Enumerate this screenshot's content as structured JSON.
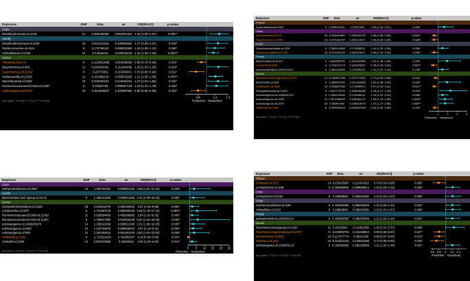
{
  "colors": {
    "background": "#000000",
    "header_bg": "#c8c8c8",
    "header_text": "#000000",
    "group_bg": "#2c2c3c",
    "group_order": "#3c3c50",
    "group_class": "#4a1a5c",
    "group_family": "#1a4a5a",
    "group_genus": "#2c4a14",
    "group_phylum": "#4a2a10",
    "text": "#e8e8e8",
    "protective": "#f08a24",
    "hazardous": "#3fd0e0",
    "axis": "#ffffff",
    "refline": "#3fd0e0"
  },
  "chart_data": [
    {
      "type": "table",
      "panel": "top-left",
      "headers": [
        "Exposure",
        "SNP",
        "beta",
        "se",
        "OR(95%CI)",
        "p-value"
      ],
      "xlim": [
        0.5,
        1.5
      ],
      "ticks": [
        "0.8",
        "1.2",
        "1.5"
      ],
      "axis_labels": [
        "Protective",
        "Hazardous"
      ],
      "footnote": "Key values: * P<0.05; ** P<0.01; *** P<0.001",
      "rows": [
        {
          "group": "Order"
        },
        {
          "name": "Desulfovibrionales.id.3156",
          "snp": "12",
          "beta": "0.265530069",
          "se": "0.094091331",
          "or": "1.30 (1.08~1.57)",
          "p": "0.005**",
          "est": 1.3,
          "lo": 1.08,
          "hi": 1.57
        },
        {
          "group": "Family"
        },
        {
          "name": "Desulfovibrionaceae.id.3169",
          "snp": "10",
          "beta": "0.242212315",
          "se": "0.106803854",
          "or": "1.27 (1.03~1.57)",
          "p": "0.023*",
          "est": 1.27,
          "lo": 1.03,
          "hi": 1.57
        },
        {
          "name": "Peptococcaceae.id.2024",
          "snp": "8",
          "beta": "0.175755164",
          "se": "0.089023953",
          "or": "1.19 (1.00~1.42)",
          "p": "0.048*",
          "est": 1.19,
          "lo": 1.0,
          "hi": 1.42
        },
        {
          "name": "Victivallaceae.id.2255",
          "snp": "12",
          "beta": "0.14618415",
          "se": "0.049025218",
          "or": "1.16 (1.05~1.28)",
          "p": "0.002**",
          "est": 1.16,
          "lo": 1.05,
          "hi": 1.28
        },
        {
          "group": "Genus"
        },
        {
          "name": "Allisonella.id.2174",
          "snp": "8",
          "beta": "-0.123381859",
          "se": "0.054695665",
          "or": "0.88 (0.79~0.98)",
          "p": "0.024*",
          "est": 0.88,
          "lo": 0.79,
          "hi": 0.98
        },
        {
          "name": "Butyricimonas.id.945",
          "snp": "13",
          "beta": "0.250945452",
          "se": "0.111444485",
          "or": "1.28 (1.03~1.60)",
          "p": "0.024*",
          "est": 1.28,
          "lo": 1.03,
          "hi": 1.6
        },
        {
          "name": "Coprococcus2.id.11302",
          "snp": "8",
          "beta": "-0.28770961",
          "se": "0.113384441",
          "or": "0.75 (0.60~0.94)",
          "p": "0.011*",
          "est": 0.75,
          "lo": 0.6,
          "hi": 0.94
        },
        {
          "name": "Holdemanella.id.11393",
          "snp": "11",
          "beta": "0.181589154",
          "se": "0.066531653",
          "or": "1.21 (1.06~1.38)",
          "p": "0.004**",
          "est": 1.21,
          "lo": 1.06,
          "hi": 1.38
        },
        {
          "name": "Marvinbryantia.id.2005",
          "snp": "10",
          "beta": "0.240032101",
          "se": "0.104934231",
          "or": "1.27 (1.04~1.56)",
          "p": "0.022*",
          "est": 1.27,
          "lo": 1.04,
          "hi": 1.56
        },
        {
          "name": "RuminococcaceaeUCG010.id.11367",
          "snp": "8",
          "beta": "0.20382759",
          "se": "0.099087126",
          "or": "1.23 (1.01~1.49)",
          "p": "0.040*",
          "est": 1.23,
          "lo": 1.01,
          "hi": 1.49
        },
        {
          "name": "unknowngenus.id.2071",
          "snp": "15",
          "beta": "-0.223265027",
          "se": "0.103887964",
          "or": "0.80 (0.65~0.98)",
          "p": "0.032*",
          "est": 0.8,
          "lo": 0.65,
          "hi": 0.98
        }
      ]
    },
    {
      "type": "table",
      "panel": "top-right",
      "headers": [
        "Exposure",
        "SNP",
        "beta",
        "se",
        "OR(95%CI)",
        "p-value"
      ],
      "xlim": [
        0,
        4
      ],
      "ticks": [
        "1",
        "2",
        "3",
        "4"
      ],
      "axis_labels": [
        "Protective",
        "Hazardous"
      ],
      "footnote": "Key values: * P<0.05; ** P<0.01; *** P<0.001",
      "rows": [
        {
          "group": "Phylum"
        },
        {
          "name": "Cyanobacteria.id.1500",
          "snp": "9",
          "beta": "0.465021561",
          "se": "0.23207981",
          "or": "1.63 (1.04~2.57)",
          "p": "0.036*",
          "est": 1.63,
          "lo": 1.04,
          "hi": 2.57
        },
        {
          "group": "Class"
        },
        {
          "name": "Actinobacteria.id.419",
          "snp": "15",
          "beta": "-0.550349867",
          "se": "0.209930729",
          "or": "0.58 (0.38~0.86)",
          "p": "0.008**",
          "est": 0.58,
          "lo": 0.38,
          "hi": 0.86
        },
        {
          "name": "Negativicutes.id.2164",
          "snp": "13",
          "beta": "-0.574106747",
          "se": "0.262123471",
          "or": "0.56 (0.34~0.94)",
          "p": "0.028*",
          "est": 0.56,
          "lo": 0.34,
          "hi": 0.94
        },
        {
          "group": "Order"
        },
        {
          "name": "Gastranaerophilales.id.1591",
          "snp": "9",
          "beta": "0.365143388",
          "se": "0.176496211",
          "or": "1.44 (1.02~2.04)",
          "p": "0.038*",
          "est": 1.44,
          "lo": 1.02,
          "hi": 2.04
        },
        {
          "name": "Selenomonadales.id.2165",
          "snp": "13",
          "beta": "-0.574106747",
          "se": "0.262123471",
          "or": "0.56 (0.34~0.94)",
          "p": "0.028*",
          "est": 0.56,
          "lo": 0.34,
          "hi": 0.94
        },
        {
          "group": "Family"
        },
        {
          "name": "Bacteroidaceae.id.917",
          "snp": "9",
          "beta": "0.650639752",
          "se": "0.251432896",
          "or": "1.92 (1.08~3.39)",
          "p": "0.026*",
          "est": 1.92,
          "lo": 1.08,
          "hi": 3.39
        },
        {
          "name": "FamilyXIII.id.1957",
          "snp": "8",
          "beta": "-0.783713174",
          "se": "0.303926287",
          "or": "0.46 (0.25~0.82)",
          "p": "0.008**",
          "est": 0.46,
          "lo": 0.25,
          "hi": 0.82
        },
        {
          "name": "unknownfamily.id.1000001214",
          "snp": "8",
          "beta": "0.365143098",
          "se": "0.176496211",
          "or": "1.44 (1.02~2.04)",
          "p": "0.038*",
          "est": 1.44,
          "lo": 1.02,
          "hi": 2.04
        },
        {
          "group": "Genus"
        },
        {
          "name": "Ruminococcaceaegroup.id.14378",
          "snp": "12",
          "beta": "-0.332547489",
          "se": "0.157177832",
          "or": "0.72 (0.53~0.98)",
          "p": "0.034*",
          "est": 0.72,
          "lo": 0.53,
          "hi": 0.98
        },
        {
          "name": "Bacteroides.id.918",
          "snp": "9",
          "beta": "0.650639752",
          "se": "0.291432896",
          "or": "1.92 (1.08~3.39)",
          "p": "0.026*",
          "est": 1.92,
          "lo": 1.08,
          "hi": 3.39
        },
        {
          "name": "Catillibacter.id.2063",
          "snp": "13",
          "beta": "-0.558997956",
          "se": "0.175488412",
          "or": "0.57 (0.40~0.81)",
          "p": "0.001**",
          "est": 0.57,
          "lo": 0.4,
          "hi": 0.81
        },
        {
          "name": "Senegalimassilia.id.11160",
          "snp": "5",
          "beta": "0.824170703",
          "se": "0.338539438",
          "or": "2.28 (1.17~4.43)",
          "p": "0.015*",
          "est": 2.28,
          "lo": 1.17,
          "hi": 4.43
        },
        {
          "name": "unknowngenus.id.1000001215",
          "snp": "8",
          "beta": "0.365143098",
          "se": "0.176496211",
          "or": "1.44 (1.02~2.04)",
          "p": "0.038*",
          "est": 1.44,
          "lo": 1.02,
          "hi": 2.04
        },
        {
          "name": "unknowngenus.id.2001",
          "snp": "10",
          "beta": "0.527089085",
          "se": "0.166501179",
          "or": "1.69 (1.16~2.50)",
          "p": "0.008**",
          "est": 1.69,
          "lo": 1.16,
          "hi": 2.5
        },
        {
          "name": "unknowngenus.id.2071",
          "snp": "15",
          "beta": "0.55047296",
          "se": "0.188313079",
          "or": "1.73 (1.17~2.56)",
          "p": "0.006**",
          "est": 1.73,
          "lo": 1.17,
          "hi": 2.56
        },
        {
          "name": "Veillonella.id.2198",
          "snp": "8",
          "beta": "-0.454246013",
          "se": "0.208901436",
          "or": "0.63 (0.42~0.96)",
          "p": "0.031*",
          "est": 0.63,
          "lo": 0.42,
          "hi": 0.96
        }
      ]
    },
    {
      "type": "table",
      "panel": "bottom-left",
      "headers": [
        "Exposure",
        "SNP",
        "beta",
        "se",
        "OR(95%CI)",
        "p-value"
      ],
      "xlim": [
        0,
        25
      ],
      "ticks": [
        "0",
        "5",
        "10",
        "15",
        "20",
        "25"
      ],
      "axis_labels": [
        "Protective",
        "Hazardous"
      ],
      "footnote": "Key values: * P<0.05; ** P<0.01; *** P<0.001",
      "rows": [
        {
          "group": "Class"
        },
        {
          "name": "Deltaproteobacteria.id.3087",
          "snp": "13",
          "beta": "1.302754781",
          "se": "0.660801418",
          "or": "3.68 (1.01~13.44)",
          "p": "0.049*",
          "est": 3.68,
          "lo": 1.01,
          "hi": 13.44
        },
        {
          "group": "Family"
        },
        {
          "name": "Bacteroidales.S24.7group.id.11173",
          "snp": "8",
          "beta": "1.185321638",
          "se": "0.568512345",
          "or": "3.31 (1.09~10.03)",
          "p": "0.035*",
          "est": 3.31,
          "lo": 1.09,
          "hi": 10.03
        },
        {
          "group": "Genus"
        },
        {
          "name": "Erysipelotrichostridium.id.11381",
          "snp": "15",
          "beta": "0.943311078",
          "se": "0.480303642",
          "or": "2.57 (1.00~6.58)",
          "p": "0.050*",
          "est": 2.57,
          "lo": 1.0,
          "hi": 6.58
        },
        {
          "name": "Lactobacillus.id.1837",
          "snp": "8",
          "beta": "1.721657076",
          "se": "0.596000128",
          "or": "5.59 (1.78~17.43)",
          "p": "0.003**",
          "est": 5.59,
          "lo": 1.78,
          "hi": 17.43
        },
        {
          "name": "RuminococcaceaeUCG009.id.11368",
          "snp": "12",
          "beta": "0.935594669",
          "se": "0.465936665",
          "or": "2.54 (1.02~6.32)",
          "p": "0.045*",
          "est": 2.54,
          "lo": 1.02,
          "hi": 6.32
        },
        {
          "name": "RuminococcaceaeUCG010.id.11367",
          "snp": "8",
          "beta": "1.768617996",
          "se": "0.815516159",
          "or": "5.81 (1.18~28.45)",
          "p": "0.030*",
          "est": 5.81,
          "lo": 1.18,
          "hi": 28.45
        },
        {
          "name": "unknowngenus.id.1000005479",
          "snp": "14",
          "beta": "1.185321638",
          "se": "0.568512345",
          "or": "3.31 (1.09~10.03)",
          "p": "0.035*",
          "est": 3.31,
          "lo": 1.09,
          "hi": 10.03
        },
        {
          "name": "unknowngenus.id.2001",
          "snp": "10",
          "beta": "1.120753878",
          "se": "0.508526874",
          "or": "3.07 (1.13~8.31)",
          "p": "0.028*",
          "est": 3.07,
          "lo": 1.13,
          "hi": 8.31
        },
        {
          "name": "unknowngenus.id.959",
          "snp": "14",
          "beta": "1.387453615",
          "se": "0.651461075",
          "or": "3.62 (1.01~13.00)",
          "p": "0.049*",
          "est": 3.62,
          "lo": 1.01,
          "hi": 13.0
        },
        {
          "name": "Veillonella.id.2198",
          "snp": "8",
          "beta": "-1.722321934",
          "se": "0.761863337",
          "or": "0.18 (0.04~0.80)",
          "p": "0.024*",
          "est": 0.18,
          "lo": 0.04,
          "hi": 0.8
        },
        {
          "name": "Victivallis.id.2256",
          "snp": "12",
          "beta": "0.897610865",
          "se": "0.36463254",
          "or": "2.45 (1.20~5.02)",
          "p": "0.014*",
          "est": 2.45,
          "lo": 1.2,
          "hi": 5.02
        }
      ]
    },
    {
      "type": "table",
      "panel": "bottom-right",
      "headers": [
        "Exposure",
        "SNP",
        "beta",
        "se",
        "OR(95%CI)",
        "p-value"
      ],
      "xlim": [
        0.55,
        1.65
      ],
      "ticks": [
        "0.6",
        "0.8",
        "1",
        "1.2",
        "1.4"
      ],
      "axis_labels": [
        "Protective",
        "Hazardous"
      ],
      "footnote": "Key values: * P<0.05; ** P<0.01; *** P<0.001",
      "rows": [
        {
          "group": "Phylum"
        },
        {
          "name": "Firmicutes.id.1672",
          "snp": "14",
          "beta": "-0.239165387",
          "se": "0.113424315",
          "or": "0.79 (0.63~0.98)",
          "p": "0.035*",
          "est": 0.79,
          "lo": 0.63,
          "hi": 0.98
        },
        {
          "name": "Lentisphaerae.id.2238",
          "snp": "9",
          "beta": "0.196955888",
          "se": "0.089669914",
          "or": "1.22 (1.03~1.44)",
          "p": "0.019*",
          "est": 1.22,
          "lo": 1.03,
          "hi": 1.44
        },
        {
          "group": "Class"
        },
        {
          "name": "Lentisphaeria.id.2250",
          "snp": "8",
          "beta": "0.19858668",
          "se": "0.096261881",
          "or": "1.22 (1.01~1.47)",
          "p": "0.039*",
          "est": 1.22,
          "lo": 1.01,
          "hi": 1.47
        },
        {
          "group": "Order"
        },
        {
          "name": "Gastranaerophilales.id.1591",
          "snp": "8",
          "beta": "0.160902595",
          "se": "0.080253949",
          "or": "1.21 (1.02~1.44)",
          "p": "0.031*",
          "est": 1.21,
          "lo": 1.02,
          "hi": 1.44
        },
        {
          "name": "Victivallales.id.2254",
          "snp": "8",
          "beta": "0.19858668",
          "se": "0.096261881",
          "or": "1.22 (1.01~1.47)",
          "p": "0.039*",
          "est": 1.22,
          "lo": 1.01,
          "hi": 1.47
        },
        {
          "group": "Family"
        },
        {
          "name": "unknownfamily.id.1000001214",
          "snp": "9",
          "beta": "0.160902595",
          "se": "0.080253949",
          "or": "1.21 (1.02~1.44)",
          "p": "0.031*",
          "est": 1.21,
          "lo": 1.02,
          "hi": 1.44
        },
        {
          "group": "Genus"
        },
        {
          "name": "Ruminococcaceaegroup.id.11342",
          "snp": "12",
          "beta": "0.23226201",
          "se": "0.111862399",
          "or": "1.26 (1.01~1.57)",
          "p": "0.038*",
          "est": 1.26,
          "lo": 1.01,
          "hi": 1.57
        },
        {
          "name": "Ruminococcusgnavusgroup.id.14377",
          "snp": "9",
          "beta": "-0.226592761",
          "se": "0.102486812",
          "or": "0.80 (0.65~0.97)",
          "p": "0.027*",
          "est": 0.8,
          "lo": 0.65,
          "hi": 0.97
        },
        {
          "name": "Intestinimonas.id.2062",
          "snp": "16",
          "beta": "-0.227477774",
          "se": "0.09201299",
          "or": "0.80 (0.67~0.95)",
          "p": "0.013*",
          "est": 0.8,
          "lo": 0.67,
          "hi": 0.95
        },
        {
          "name": "Roseburia.id.2012",
          "snp": "14",
          "beta": "-0.324341242",
          "se": "0.136611609",
          "or": "0.72 (0.55~0.94)",
          "p": "0.018*",
          "est": 0.72,
          "lo": 0.55,
          "hi": 0.94
        },
        {
          "name": "unknowngenus.id.1000001215",
          "snp": "9",
          "beta": "0.160902595",
          "se": "0.080253949",
          "or": "1.21 (1.02~1.44)",
          "p": "0.031*",
          "est": 1.21,
          "lo": 1.02,
          "hi": 1.44
        }
      ]
    }
  ]
}
